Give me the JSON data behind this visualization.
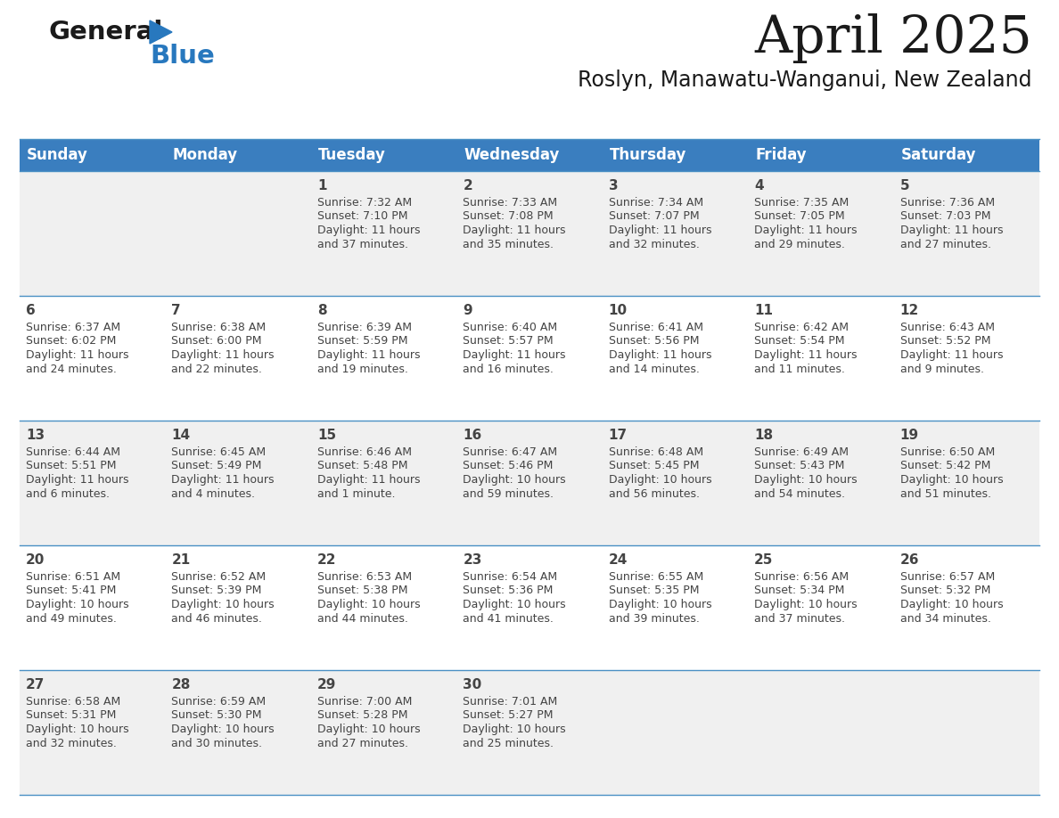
{
  "title": "April 2025",
  "subtitle": "Roslyn, Manawatu-Wanganui, New Zealand",
  "header_bg": "#3a7ebf",
  "header_text_color": "#ffffff",
  "row_bg_light": "#f0f0f0",
  "row_bg_white": "#ffffff",
  "cell_border_color": "#4a90c4",
  "day_headers": [
    "Sunday",
    "Monday",
    "Tuesday",
    "Wednesday",
    "Thursday",
    "Friday",
    "Saturday"
  ],
  "calendar": [
    [
      {
        "day": "",
        "sunrise": "",
        "sunset": "",
        "daylight": ""
      },
      {
        "day": "",
        "sunrise": "",
        "sunset": "",
        "daylight": ""
      },
      {
        "day": "1",
        "sunrise": "7:32 AM",
        "sunset": "7:10 PM",
        "daylight": "11 hours and 37 minutes."
      },
      {
        "day": "2",
        "sunrise": "7:33 AM",
        "sunset": "7:08 PM",
        "daylight": "11 hours and 35 minutes."
      },
      {
        "day": "3",
        "sunrise": "7:34 AM",
        "sunset": "7:07 PM",
        "daylight": "11 hours and 32 minutes."
      },
      {
        "day": "4",
        "sunrise": "7:35 AM",
        "sunset": "7:05 PM",
        "daylight": "11 hours and 29 minutes."
      },
      {
        "day": "5",
        "sunrise": "7:36 AM",
        "sunset": "7:03 PM",
        "daylight": "11 hours and 27 minutes."
      }
    ],
    [
      {
        "day": "6",
        "sunrise": "6:37 AM",
        "sunset": "6:02 PM",
        "daylight": "11 hours and 24 minutes."
      },
      {
        "day": "7",
        "sunrise": "6:38 AM",
        "sunset": "6:00 PM",
        "daylight": "11 hours and 22 minutes."
      },
      {
        "day": "8",
        "sunrise": "6:39 AM",
        "sunset": "5:59 PM",
        "daylight": "11 hours and 19 minutes."
      },
      {
        "day": "9",
        "sunrise": "6:40 AM",
        "sunset": "5:57 PM",
        "daylight": "11 hours and 16 minutes."
      },
      {
        "day": "10",
        "sunrise": "6:41 AM",
        "sunset": "5:56 PM",
        "daylight": "11 hours and 14 minutes."
      },
      {
        "day": "11",
        "sunrise": "6:42 AM",
        "sunset": "5:54 PM",
        "daylight": "11 hours and 11 minutes."
      },
      {
        "day": "12",
        "sunrise": "6:43 AM",
        "sunset": "5:52 PM",
        "daylight": "11 hours and 9 minutes."
      }
    ],
    [
      {
        "day": "13",
        "sunrise": "6:44 AM",
        "sunset": "5:51 PM",
        "daylight": "11 hours and 6 minutes."
      },
      {
        "day": "14",
        "sunrise": "6:45 AM",
        "sunset": "5:49 PM",
        "daylight": "11 hours and 4 minutes."
      },
      {
        "day": "15",
        "sunrise": "6:46 AM",
        "sunset": "5:48 PM",
        "daylight": "11 hours and 1 minute."
      },
      {
        "day": "16",
        "sunrise": "6:47 AM",
        "sunset": "5:46 PM",
        "daylight": "10 hours and 59 minutes."
      },
      {
        "day": "17",
        "sunrise": "6:48 AM",
        "sunset": "5:45 PM",
        "daylight": "10 hours and 56 minutes."
      },
      {
        "day": "18",
        "sunrise": "6:49 AM",
        "sunset": "5:43 PM",
        "daylight": "10 hours and 54 minutes."
      },
      {
        "day": "19",
        "sunrise": "6:50 AM",
        "sunset": "5:42 PM",
        "daylight": "10 hours and 51 minutes."
      }
    ],
    [
      {
        "day": "20",
        "sunrise": "6:51 AM",
        "sunset": "5:41 PM",
        "daylight": "10 hours and 49 minutes."
      },
      {
        "day": "21",
        "sunrise": "6:52 AM",
        "sunset": "5:39 PM",
        "daylight": "10 hours and 46 minutes."
      },
      {
        "day": "22",
        "sunrise": "6:53 AM",
        "sunset": "5:38 PM",
        "daylight": "10 hours and 44 minutes."
      },
      {
        "day": "23",
        "sunrise": "6:54 AM",
        "sunset": "5:36 PM",
        "daylight": "10 hours and 41 minutes."
      },
      {
        "day": "24",
        "sunrise": "6:55 AM",
        "sunset": "5:35 PM",
        "daylight": "10 hours and 39 minutes."
      },
      {
        "day": "25",
        "sunrise": "6:56 AM",
        "sunset": "5:34 PM",
        "daylight": "10 hours and 37 minutes."
      },
      {
        "day": "26",
        "sunrise": "6:57 AM",
        "sunset": "5:32 PM",
        "daylight": "10 hours and 34 minutes."
      }
    ],
    [
      {
        "day": "27",
        "sunrise": "6:58 AM",
        "sunset": "5:31 PM",
        "daylight": "10 hours and 32 minutes."
      },
      {
        "day": "28",
        "sunrise": "6:59 AM",
        "sunset": "5:30 PM",
        "daylight": "10 hours and 30 minutes."
      },
      {
        "day": "29",
        "sunrise": "7:00 AM",
        "sunset": "5:28 PM",
        "daylight": "10 hours and 27 minutes."
      },
      {
        "day": "30",
        "sunrise": "7:01 AM",
        "sunset": "5:27 PM",
        "daylight": "10 hours and 25 minutes."
      },
      {
        "day": "",
        "sunrise": "",
        "sunset": "",
        "daylight": ""
      },
      {
        "day": "",
        "sunrise": "",
        "sunset": "",
        "daylight": ""
      },
      {
        "day": "",
        "sunrise": "",
        "sunset": "",
        "daylight": ""
      }
    ]
  ],
  "logo_color_general": "#1a1a1a",
  "logo_color_blue": "#2878be",
  "title_color": "#1a1a1a",
  "subtitle_color": "#1a1a1a",
  "fig_width": 11.88,
  "fig_height": 9.18,
  "dpi": 100
}
